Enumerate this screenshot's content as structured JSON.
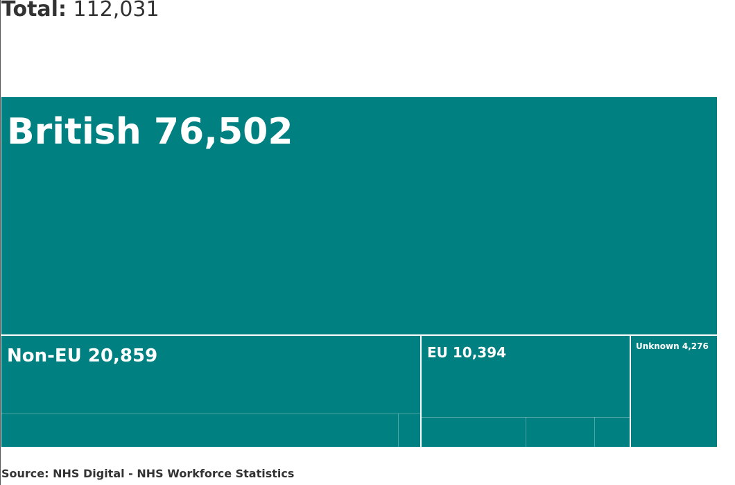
{
  "header": {
    "total_label": "Total:",
    "total_value": "112,031"
  },
  "chart_data": {
    "type": "treemap",
    "total": 112031,
    "items": [
      {
        "label": "British",
        "value": 76502,
        "value_text": "76,502"
      },
      {
        "label": "Non-EU",
        "value": 20859,
        "value_text": "20,859"
      },
      {
        "label": "EU",
        "value": 10394,
        "value_text": "10,394"
      },
      {
        "label": "Unknown",
        "value": 4276,
        "value_text": "4,276"
      }
    ],
    "color": "#008080"
  },
  "footer": {
    "source": "Source: NHS Digital - NHS Workforce Statistics"
  }
}
